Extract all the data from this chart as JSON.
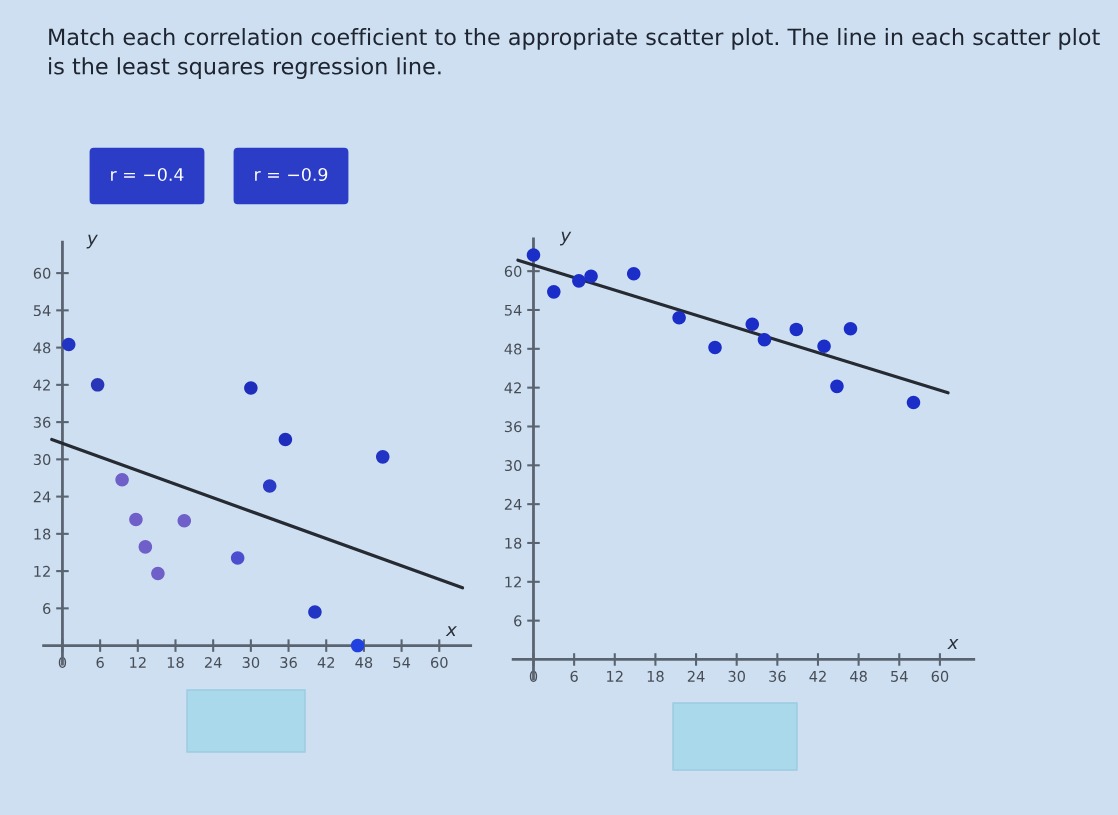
{
  "chart_data": [
    {
      "type": "scatter",
      "title": "Match each correlation coefficient to the appropriate scatter plot. The line in each scatter plot is the least squares regression line.",
      "annotations": [
        "r = −0.4",
        "r = −0.9"
      ],
      "xlabel": "x",
      "ylabel": "y",
      "xlim": [
        -3,
        65
      ],
      "ylim": [
        -3,
        65
      ],
      "xticks": [
        0,
        6,
        12,
        18,
        24,
        30,
        36,
        42,
        48,
        54,
        60
      ],
      "yticks": [
        6,
        12,
        18,
        24,
        30,
        36,
        42,
        48,
        54,
        60
      ],
      "series": [
        {
          "marker": "circle",
          "x": [
            1,
            5.6,
            30,
            35.5,
            51,
            9.5,
            33,
            11.7,
            19.4,
            13.2,
            27.9,
            15.2,
            40.2,
            47
          ],
          "values": [
            48.5,
            42,
            41.5,
            33.2,
            30.4,
            26.7,
            25.7,
            20.3,
            20.1,
            15.9,
            14.1,
            11.6,
            5.4,
            0
          ],
          "colors": [
            "#2234c4",
            "#2a36b8",
            "#1f2dbd",
            "#1f2dbd",
            "#2234c4",
            "#6e5fc9",
            "#2b3ac6",
            "#6e5fc9",
            "#6e5fc9",
            "#6e5fc9",
            "#4b4fcf",
            "#6e5fc9",
            "#2234c4",
            "#2040e0"
          ]
        },
        {
          "type": "line",
          "x": [
            -1.7,
            63.7
          ],
          "values": [
            33.2,
            9.3
          ],
          "color": "#262a33",
          "line_style": "solid"
        }
      ]
    },
    {
      "type": "scatter",
      "xlabel": "x",
      "ylabel": "y",
      "xlim": [
        -3,
        65
      ],
      "ylim": [
        -3,
        65
      ],
      "xticks": [
        0,
        6,
        12,
        18,
        24,
        30,
        36,
        42,
        48,
        54,
        60
      ],
      "yticks": [
        6,
        12,
        18,
        24,
        30,
        36,
        42,
        48,
        54,
        60
      ],
      "series": [
        {
          "marker": "circle",
          "x": [
            0,
            3,
            6.7,
            8.5,
            14.8,
            21.5,
            26.8,
            32.3,
            34.1,
            38.8,
            42.9,
            46.8,
            44.8,
            56.1
          ],
          "values": [
            62.5,
            56.8,
            58.5,
            59.2,
            59.6,
            52.8,
            48.2,
            51.8,
            49.4,
            51,
            48.4,
            51.1,
            42.2,
            39.7
          ],
          "color": "#1c2ec8"
        },
        {
          "type": "line",
          "x": [
            -2.3,
            61.2
          ],
          "values": [
            61.7,
            41.2
          ],
          "color": "#262a33",
          "line_style": "solid"
        }
      ]
    }
  ]
}
